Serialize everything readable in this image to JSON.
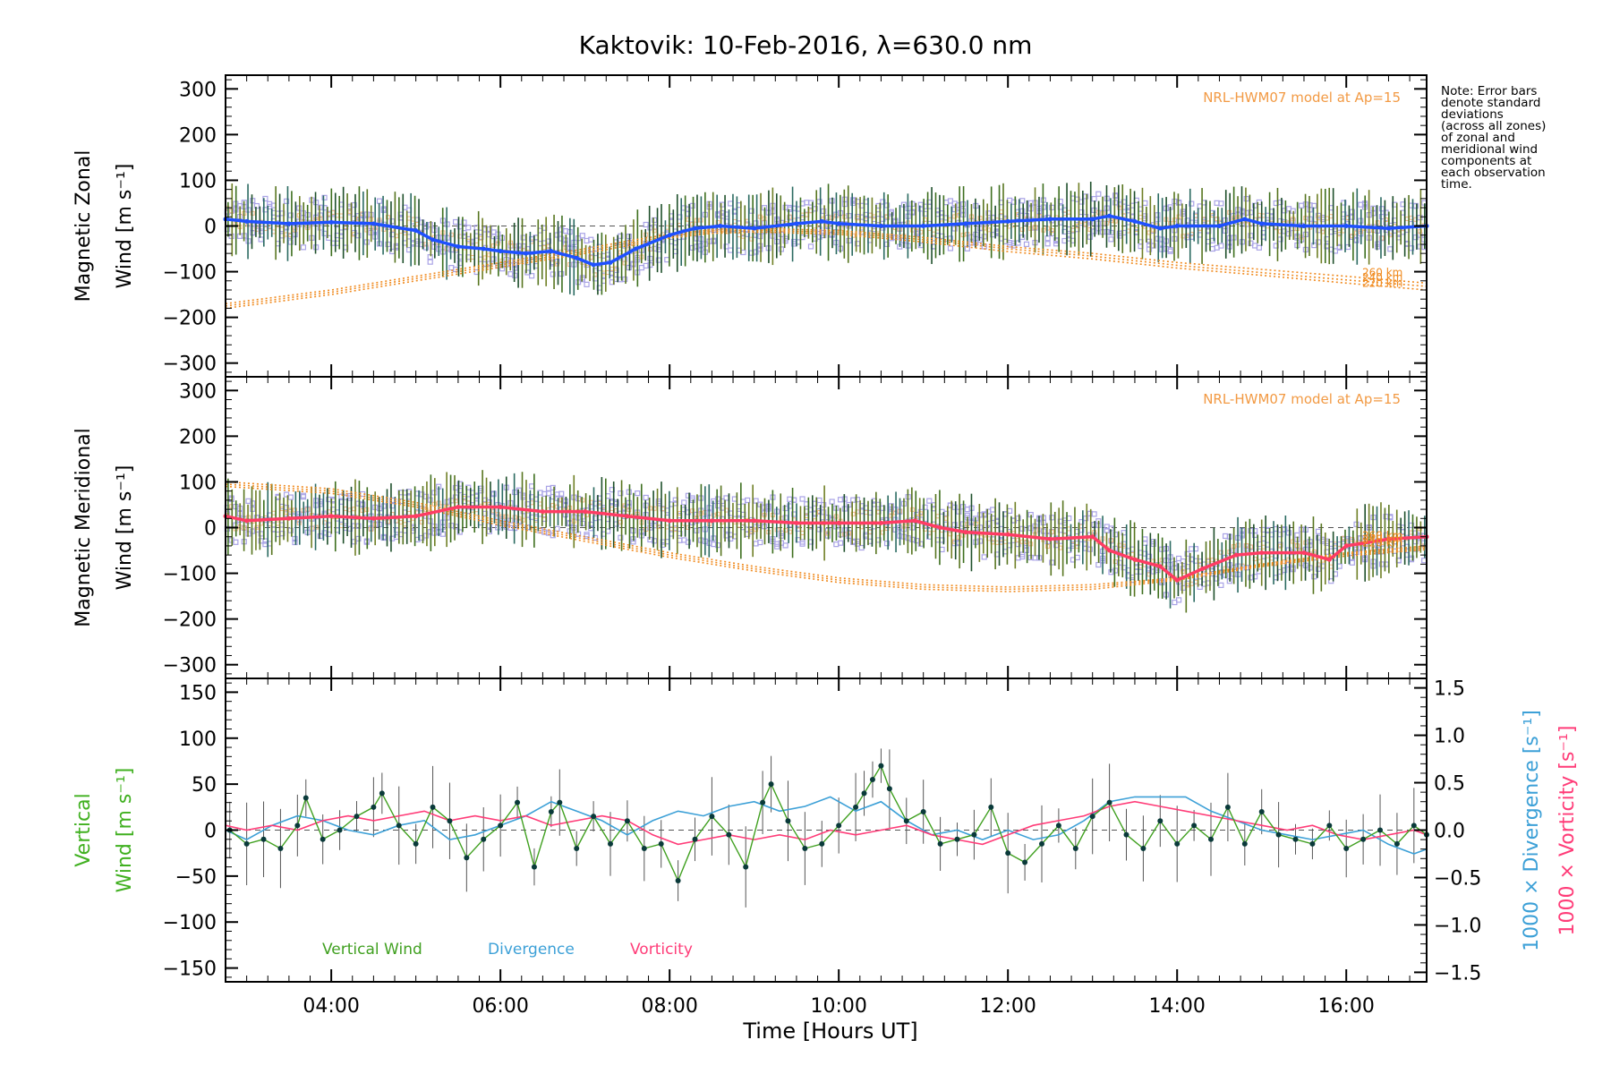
{
  "chart_data": {
    "title": "Kaktovik: 10-Feb-2016, λ=630.0 nm",
    "type": "line",
    "x_label": "Time [Hours UT]",
    "x_unit": "hours UT",
    "x_range": [
      2.75,
      16.95
    ],
    "x_ticks": [
      4,
      6,
      8,
      10,
      12,
      14,
      16
    ],
    "x_tick_labels": [
      "04:00",
      "06:00",
      "08:00",
      "10:00",
      "12:00",
      "14:00",
      "16:00"
    ],
    "note": [
      "Note: Error bars",
      "denote standard",
      "deviations",
      "(across all zones)",
      "of zonal and",
      "meridional wind",
      "components at",
      "each observation",
      "time."
    ],
    "panels": [
      {
        "id": "zonal",
        "ylabel_line1": "Magnetic Zonal",
        "ylabel_line2": "Wind [m s⁻¹]",
        "y_range": [
          -330,
          330
        ],
        "y_ticks": [
          300,
          200,
          100,
          0,
          -100,
          -200,
          -300
        ],
        "model_label": "NRL-HWM07 model at Ap=15",
        "altitude_labels": [
          "260 km",
          "240 km",
          "220 km"
        ],
        "mean_color": "#1e50ff",
        "mean_series": {
          "name": "Mean magnetic zonal wind",
          "x": [
            2.75,
            3.0,
            3.5,
            4.0,
            4.5,
            5.0,
            5.2,
            5.5,
            5.8,
            6.0,
            6.3,
            6.6,
            6.9,
            7.1,
            7.3,
            7.6,
            8.0,
            8.3,
            8.6,
            9.0,
            9.5,
            9.8,
            10.0,
            10.5,
            11.0,
            11.5,
            12.0,
            12.5,
            13.0,
            13.2,
            13.5,
            13.8,
            14.0,
            14.5,
            14.8,
            15.0,
            15.5,
            16.0,
            16.5,
            16.95
          ],
          "y": [
            15,
            10,
            5,
            8,
            5,
            -10,
            -30,
            -45,
            -50,
            -55,
            -60,
            -55,
            -70,
            -85,
            -80,
            -50,
            -20,
            -5,
            0,
            -5,
            5,
            10,
            5,
            0,
            0,
            5,
            10,
            15,
            15,
            22,
            10,
            -5,
            0,
            0,
            15,
            5,
            0,
            0,
            -5,
            0
          ]
        },
        "model_series": [
          {
            "name": "260 km",
            "x": [
              2.75,
              4,
              5,
              6,
              7,
              7.6,
              8,
              8.5,
              9,
              10,
              11,
              12,
              13,
              14,
              15,
              16,
              16.95
            ],
            "y": [
              -170,
              -140,
              -110,
              -80,
              -50,
              -30,
              -18,
              -8,
              -5,
              -10,
              -25,
              -45,
              -60,
              -80,
              -95,
              -110,
              -125
            ]
          },
          {
            "name": "240 km",
            "x": [
              2.75,
              4,
              5,
              6,
              7,
              7.6,
              8,
              8.5,
              9,
              10,
              11,
              12,
              13,
              14,
              15,
              16,
              16.95
            ],
            "y": [
              -175,
              -145,
              -115,
              -85,
              -55,
              -35,
              -22,
              -12,
              -9,
              -14,
              -30,
              -50,
              -66,
              -86,
              -102,
              -118,
              -132
            ]
          },
          {
            "name": "220 km",
            "x": [
              2.75,
              4,
              5,
              6,
              7,
              7.6,
              8,
              8.5,
              9,
              10,
              11,
              12,
              13,
              14,
              15,
              16,
              16.95
            ],
            "y": [
              -180,
              -150,
              -120,
              -90,
              -60,
              -40,
              -26,
              -16,
              -13,
              -18,
              -35,
              -56,
              -72,
              -92,
              -108,
              -125,
              -140
            ]
          }
        ]
      },
      {
        "id": "meridional",
        "ylabel_line1": "Magnetic Meridional",
        "ylabel_line2": "Wind [m s⁻¹]",
        "y_range": [
          -330,
          330
        ],
        "y_ticks": [
          300,
          200,
          100,
          0,
          -100,
          -200,
          -300
        ],
        "model_label": "NRL-HWM07 model at Ap=15",
        "altitude_labels": [
          "260 km",
          "240 km",
          "220 km"
        ],
        "mean_color": "#ff3c64",
        "mean_series": {
          "name": "Mean magnetic meridional wind",
          "x": [
            2.75,
            3.0,
            3.5,
            4.0,
            4.5,
            5.0,
            5.5,
            6.0,
            6.5,
            7.0,
            7.5,
            8.0,
            8.5,
            9.0,
            9.5,
            10.0,
            10.5,
            10.9,
            11.2,
            11.5,
            12.0,
            12.5,
            13.0,
            13.2,
            13.5,
            13.8,
            14.0,
            14.3,
            14.7,
            15.0,
            15.5,
            15.8,
            16.0,
            16.5,
            16.95
          ],
          "y": [
            25,
            15,
            20,
            25,
            20,
            25,
            45,
            45,
            35,
            35,
            25,
            15,
            15,
            15,
            10,
            10,
            10,
            15,
            0,
            -10,
            -15,
            -25,
            -20,
            -50,
            -70,
            -85,
            -115,
            -90,
            -60,
            -55,
            -55,
            -70,
            -40,
            -25,
            -20
          ]
        },
        "model_series": [
          {
            "name": "260 km",
            "x": [
              2.75,
              4,
              5,
              6,
              7,
              8,
              9,
              10,
              11,
              12,
              13,
              14,
              15,
              16,
              16.95
            ],
            "y": [
              100,
              85,
              55,
              15,
              -20,
              -55,
              -85,
              -110,
              -125,
              -130,
              -125,
              -110,
              -80,
              -55,
              -40
            ]
          },
          {
            "name": "240 km",
            "x": [
              2.75,
              4,
              5,
              6,
              7,
              8,
              9,
              10,
              11,
              12,
              13,
              14,
              15,
              16,
              16.95
            ],
            "y": [
              95,
              80,
              50,
              10,
              -25,
              -60,
              -90,
              -115,
              -130,
              -135,
              -130,
              -112,
              -82,
              -58,
              -44
            ]
          },
          {
            "name": "220 km",
            "x": [
              2.75,
              4,
              5,
              6,
              7,
              8,
              9,
              10,
              11,
              12,
              13,
              14,
              15,
              16,
              16.95
            ],
            "y": [
              90,
              75,
              45,
              5,
              -30,
              -65,
              -95,
              -120,
              -135,
              -140,
              -135,
              -115,
              -85,
              -62,
              -48
            ]
          }
        ]
      },
      {
        "id": "vertical",
        "ylabel_line1": "Vertical",
        "ylabel_line2": "Wind [m s⁻¹]",
        "ylabel_color": "#40b020",
        "y_range": [
          -165,
          165
        ],
        "y_ticks": [
          150,
          100,
          50,
          0,
          -50,
          -100,
          -150
        ],
        "right_axis": {
          "range": [
            -1.6,
            1.6
          ],
          "ticks": [
            1.5,
            1.0,
            0.5,
            0.0,
            -0.5,
            -1.0,
            -1.5
          ],
          "tick_labels": [
            "1.5",
            "1.0",
            "0.5",
            "0.0",
            "−0.5",
            "−1.0",
            "−1.5"
          ],
          "label_divergence": "1000 × Divergence [s⁻¹]",
          "label_vorticity": "1000 × Vorticity [s⁻¹]",
          "divergence_color": "#3ca0d7",
          "vorticity_color": "#ff3c78"
        },
        "legend": [
          {
            "label": "Vertical Wind",
            "color": "#40a020"
          },
          {
            "label": "Divergence",
            "color": "#3ca0d7"
          },
          {
            "label": "Vorticity",
            "color": "#ff3c78"
          }
        ],
        "vertical_series": {
          "name": "Vertical Wind",
          "x": [
            2.8,
            3.0,
            3.2,
            3.4,
            3.6,
            3.7,
            3.9,
            4.1,
            4.3,
            4.5,
            4.6,
            4.8,
            5.0,
            5.2,
            5.4,
            5.6,
            5.8,
            6.0,
            6.2,
            6.4,
            6.6,
            6.7,
            6.9,
            7.1,
            7.3,
            7.5,
            7.7,
            7.9,
            8.1,
            8.3,
            8.5,
            8.7,
            8.9,
            9.1,
            9.2,
            9.4,
            9.6,
            9.8,
            10.0,
            10.2,
            10.3,
            10.4,
            10.5,
            10.6,
            10.8,
            11.0,
            11.2,
            11.4,
            11.6,
            11.8,
            12.0,
            12.2,
            12.4,
            12.6,
            12.8,
            13.0,
            13.2,
            13.4,
            13.6,
            13.8,
            14.0,
            14.2,
            14.4,
            14.6,
            14.8,
            15.0,
            15.2,
            15.4,
            15.6,
            15.8,
            16.0,
            16.2,
            16.4,
            16.6,
            16.8,
            16.95
          ],
          "y": [
            0,
            -15,
            -10,
            -20,
            5,
            35,
            -10,
            0,
            15,
            25,
            40,
            5,
            -15,
            25,
            10,
            -30,
            -10,
            5,
            30,
            -40,
            20,
            30,
            -20,
            15,
            -15,
            10,
            -20,
            -15,
            -55,
            -10,
            15,
            -5,
            -40,
            30,
            50,
            10,
            -20,
            -15,
            5,
            25,
            40,
            55,
            70,
            45,
            10,
            20,
            -15,
            -10,
            -5,
            25,
            -25,
            -35,
            -15,
            5,
            -20,
            15,
            30,
            -5,
            -20,
            10,
            -15,
            5,
            -10,
            25,
            -15,
            20,
            -5,
            -10,
            -15,
            5,
            -20,
            -10,
            0,
            -15,
            5,
            -5
          ]
        },
        "divergence_series": {
          "name": "Divergence",
          "x": [
            2.75,
            3.0,
            3.3,
            3.6,
            3.9,
            4.2,
            4.5,
            4.8,
            5.1,
            5.4,
            5.7,
            6.0,
            6.3,
            6.6,
            6.9,
            7.2,
            7.5,
            7.8,
            8.1,
            8.4,
            8.7,
            9.0,
            9.3,
            9.6,
            9.9,
            10.2,
            10.5,
            10.8,
            11.1,
            11.4,
            11.7,
            12.0,
            12.3,
            12.6,
            12.9,
            13.2,
            13.5,
            13.8,
            14.1,
            14.4,
            14.7,
            15.0,
            15.3,
            15.6,
            15.9,
            16.2,
            16.5,
            16.8,
            16.95
          ],
          "y": [
            0.0,
            -0.1,
            0.05,
            0.15,
            0.1,
            0.0,
            -0.05,
            0.05,
            0.1,
            -0.1,
            -0.05,
            0.05,
            0.15,
            0.3,
            0.2,
            0.1,
            -0.05,
            0.1,
            0.2,
            0.15,
            0.25,
            0.3,
            0.2,
            0.25,
            0.35,
            0.2,
            0.3,
            0.1,
            -0.05,
            0.0,
            -0.1,
            0.0,
            -0.1,
            -0.05,
            0.1,
            0.3,
            0.35,
            0.35,
            0.35,
            0.2,
            0.1,
            0.0,
            -0.05,
            -0.1,
            -0.05,
            0.0,
            -0.15,
            -0.25,
            -0.2
          ]
        },
        "vorticity_series": {
          "name": "Vorticity",
          "x": [
            2.75,
            3.0,
            3.3,
            3.6,
            3.9,
            4.2,
            4.5,
            4.8,
            5.1,
            5.4,
            5.7,
            6.0,
            6.3,
            6.6,
            6.9,
            7.2,
            7.5,
            7.8,
            8.1,
            8.4,
            8.7,
            9.0,
            9.3,
            9.6,
            9.9,
            10.2,
            10.5,
            10.8,
            11.1,
            11.4,
            11.7,
            12.0,
            12.3,
            12.6,
            12.9,
            13.2,
            13.5,
            13.8,
            14.1,
            14.4,
            14.7,
            15.0,
            15.3,
            15.6,
            15.9,
            16.2,
            16.5,
            16.8,
            16.95
          ],
          "y": [
            0.05,
            0.0,
            0.05,
            0.0,
            0.1,
            0.15,
            0.1,
            0.15,
            0.2,
            0.1,
            0.15,
            0.1,
            0.15,
            0.05,
            0.1,
            0.15,
            0.1,
            -0.05,
            -0.15,
            -0.1,
            -0.05,
            -0.1,
            -0.05,
            -0.1,
            0.0,
            -0.05,
            0.0,
            0.05,
            -0.05,
            -0.1,
            -0.15,
            -0.05,
            0.05,
            0.1,
            0.15,
            0.25,
            0.3,
            0.25,
            0.2,
            0.15,
            0.1,
            0.05,
            0.0,
            0.05,
            -0.05,
            -0.1,
            -0.05,
            0.0,
            -0.05
          ]
        }
      }
    ]
  }
}
